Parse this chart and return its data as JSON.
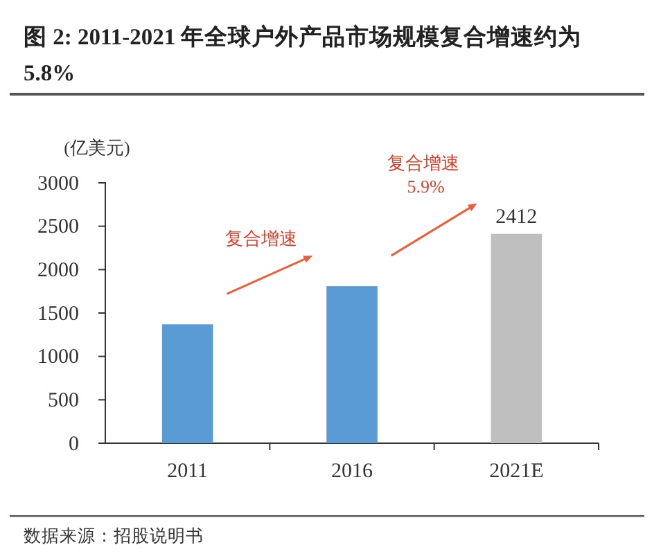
{
  "chart_data": {
    "type": "bar",
    "title": "图 2: 2011-2021 年全球户外产品市场规模复合增速约为 5.8%",
    "ylabel": "(亿美元)",
    "categories": [
      "2011",
      "2016",
      "2021E"
    ],
    "values": [
      1370,
      1810,
      2412
    ],
    "colors": [
      "#5b9bd5",
      "#5b9bd5",
      "#bfbfbf"
    ],
    "value_labels": [
      null,
      null,
      "2412"
    ],
    "ylim": [
      0,
      3000
    ],
    "yticks": [
      0,
      500,
      1000,
      1500,
      2000,
      2500,
      3000
    ],
    "annotations": [
      "复合增速",
      "复合增速 5.9%",
      "数据来源：招股说明书"
    ]
  }
}
